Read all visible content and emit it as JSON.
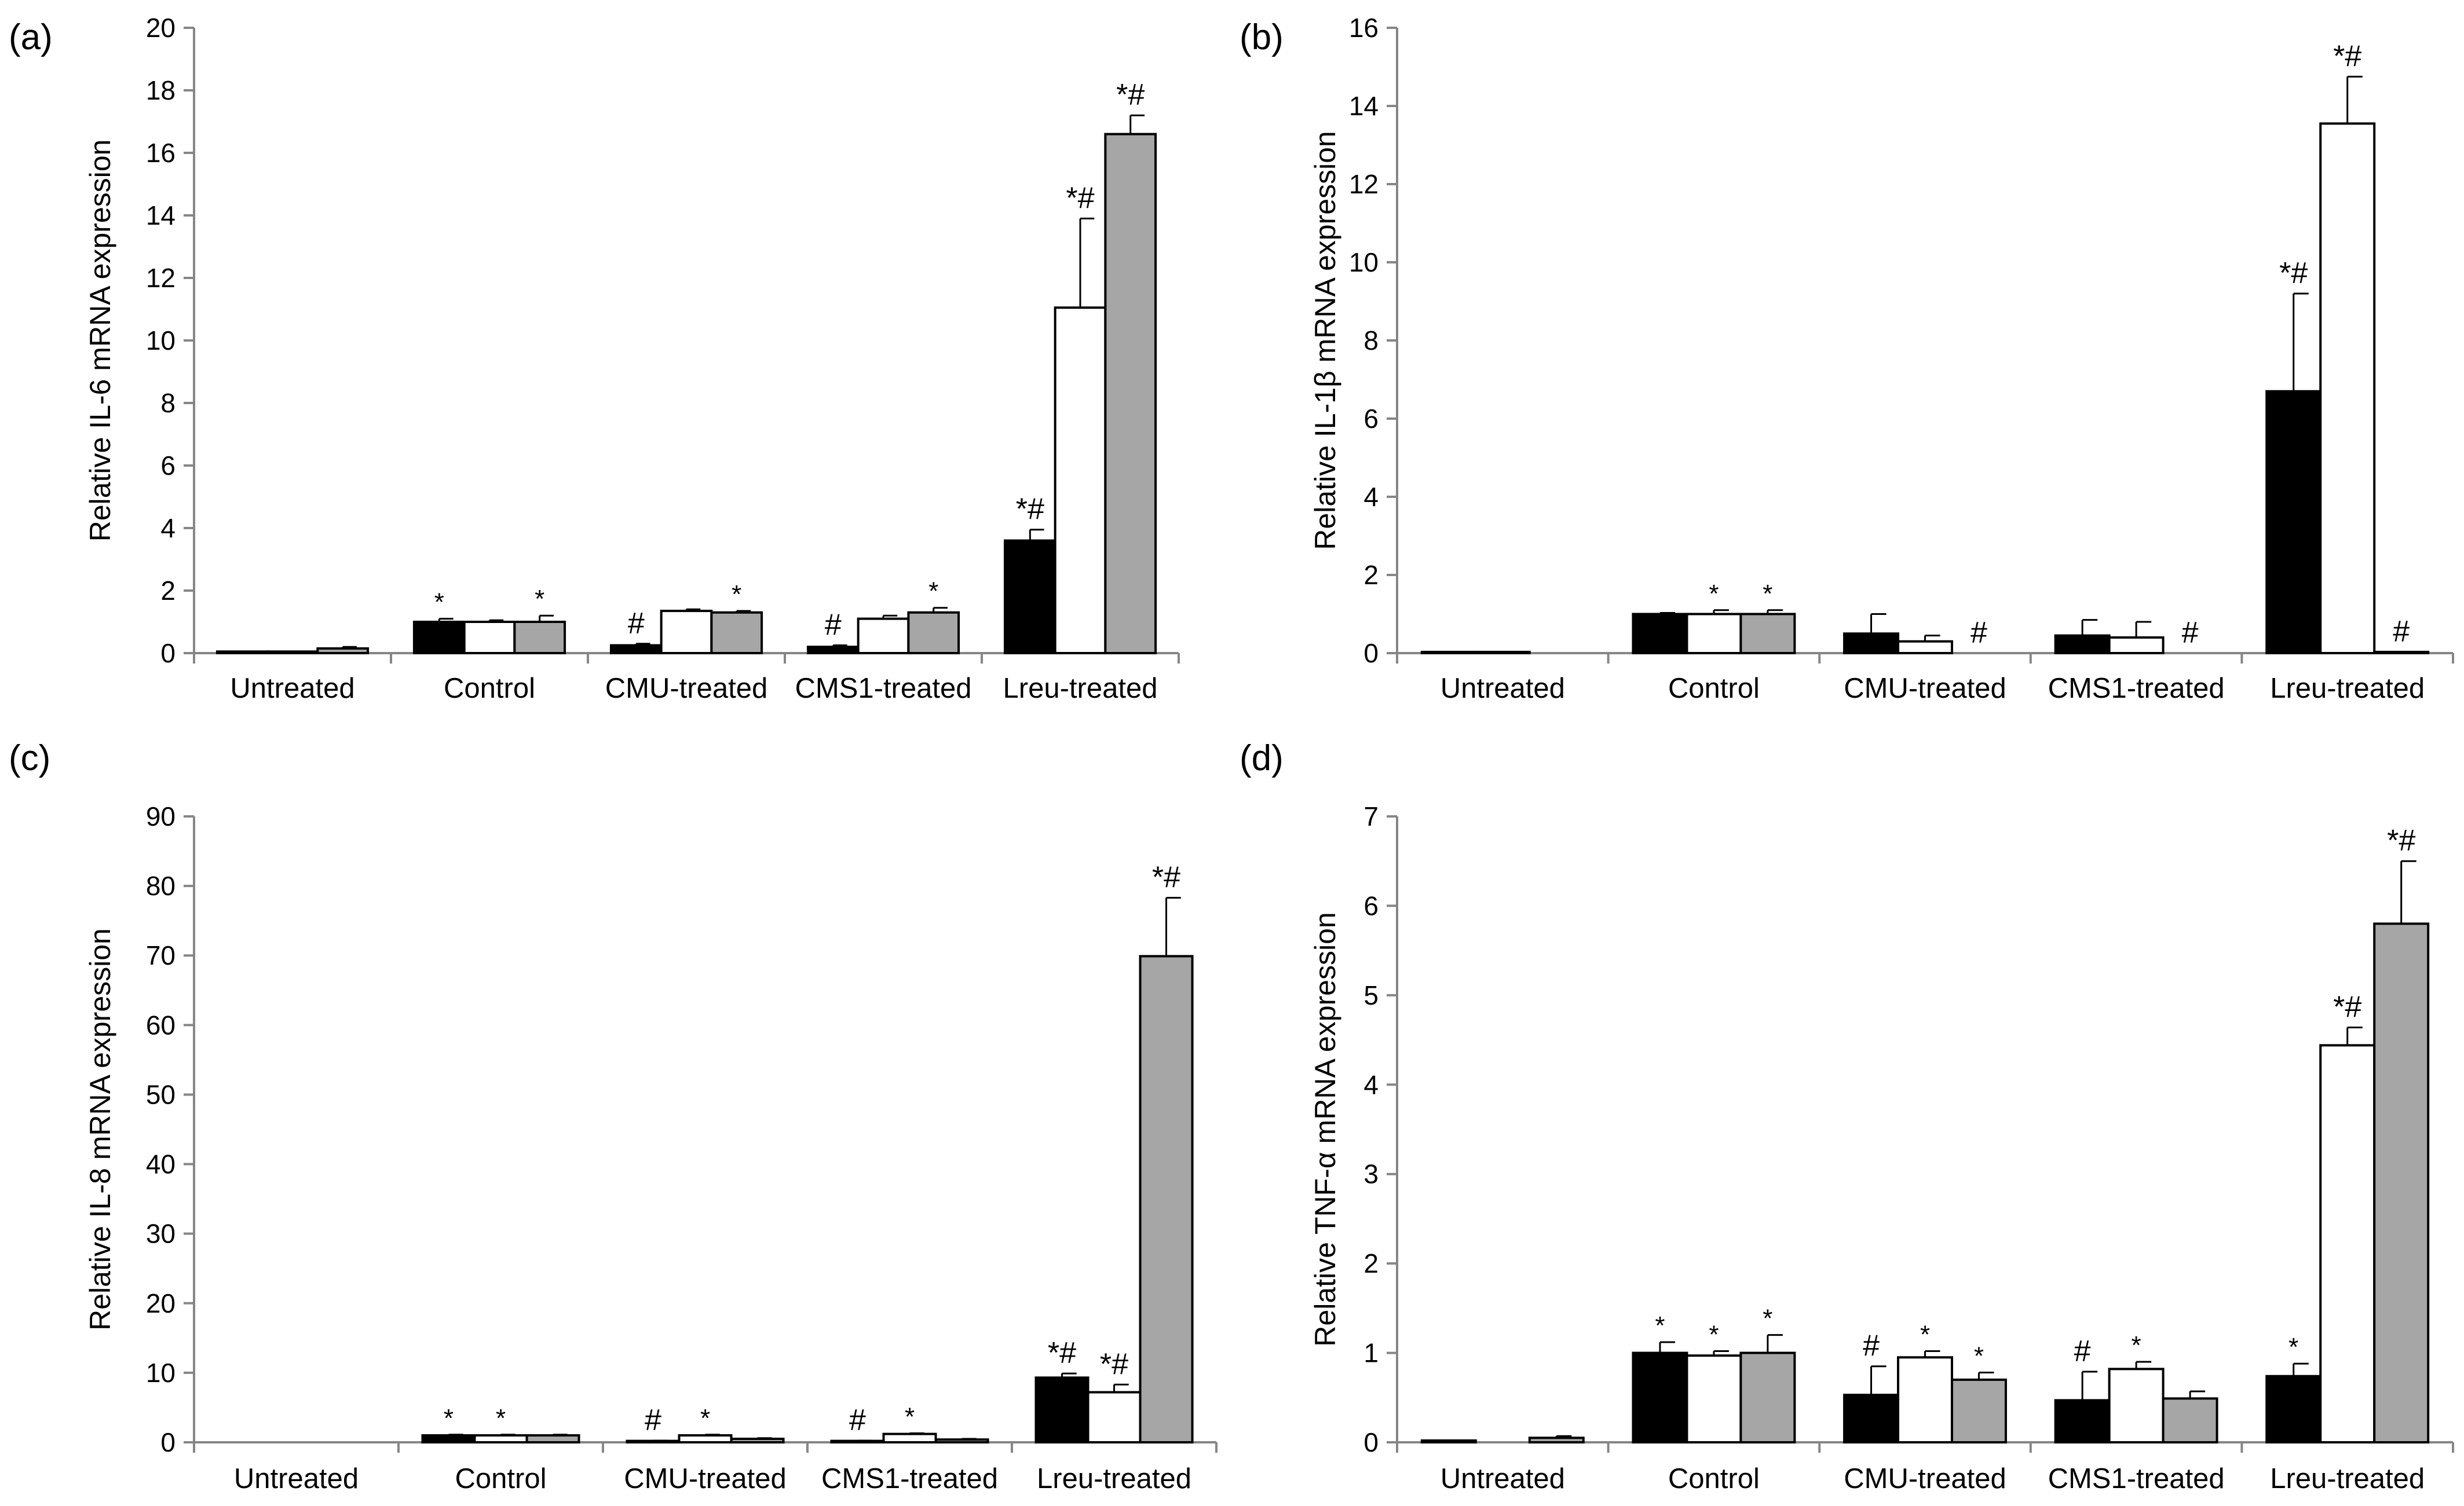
{
  "colors": {
    "black": "#000000",
    "white": "#ffffff",
    "gray": "#a6a6a6",
    "axis": "#868686"
  },
  "chart_data": [
    {
      "type": "bar",
      "panel": "(a)",
      "ylabel": "Relative IL-6 mRNA expression",
      "ylim": [
        0,
        20
      ],
      "yticks": [
        0,
        2,
        4,
        6,
        8,
        10,
        12,
        14,
        16,
        18,
        20
      ],
      "categories": [
        "Untreated",
        "Control",
        "CMU-treated",
        "CMS1-treated",
        "Lreu-treated"
      ],
      "series": [
        {
          "name": "series 1",
          "color": "#000000",
          "values": [
            0.05,
            1.0,
            0.25,
            0.2,
            3.6
          ],
          "errors": [
            0.0,
            0.1,
            0.05,
            0.05,
            0.35
          ],
          "sig": [
            "",
            "*",
            "#",
            "#",
            "*#"
          ]
        },
        {
          "name": "series 2",
          "color": "#ffffff",
          "values": [
            0.05,
            1.0,
            1.35,
            1.1,
            11.05
          ],
          "errors": [
            0.0,
            0.05,
            0.05,
            0.1,
            2.85
          ],
          "sig": [
            "",
            "",
            "",
            "",
            "*#"
          ]
        },
        {
          "name": "series 3",
          "color": "#a6a6a6",
          "values": [
            0.15,
            1.0,
            1.3,
            1.3,
            16.6
          ],
          "errors": [
            0.05,
            0.2,
            0.05,
            0.15,
            0.6
          ],
          "sig": [
            "",
            "*",
            "*",
            "*",
            "*#"
          ]
        }
      ]
    },
    {
      "type": "bar",
      "panel": "(b)",
      "ylabel": "Relative IL-1β mRNA expression",
      "ylim": [
        0,
        16
      ],
      "yticks": [
        0,
        2,
        4,
        6,
        8,
        10,
        12,
        14,
        16
      ],
      "categories": [
        "Untreated",
        "Control",
        "CMU-treated",
        "CMS1-treated",
        "Lreu-treated"
      ],
      "series": [
        {
          "name": "series 1",
          "color": "#000000",
          "values": [
            0.03,
            1.0,
            0.5,
            0.45,
            6.7
          ],
          "errors": [
            0.0,
            0.03,
            0.5,
            0.4,
            2.5
          ],
          "sig": [
            "",
            "",
            "",
            "",
            "*#"
          ]
        },
        {
          "name": "series 2",
          "color": "#ffffff",
          "values": [
            0.03,
            1.0,
            0.3,
            0.4,
            13.55
          ],
          "errors": [
            0.0,
            0.1,
            0.15,
            0.4,
            1.2
          ],
          "sig": [
            "",
            "*",
            "",
            "",
            "*#"
          ]
        },
        {
          "name": "series 3",
          "color": "#a6a6a6",
          "values": [
            0.0,
            1.0,
            0.0,
            0.0,
            0.03
          ],
          "errors": [
            0.0,
            0.1,
            0.0,
            0.0,
            0.0
          ],
          "sig": [
            "",
            "*",
            "#",
            "#",
            "#"
          ]
        }
      ]
    },
    {
      "type": "bar",
      "panel": "(c)",
      "ylabel": "Relative IL-8 mRNA expression",
      "ylim": [
        0,
        90
      ],
      "yticks": [
        0,
        10,
        20,
        30,
        40,
        50,
        60,
        70,
        80,
        90
      ],
      "categories": [
        "Untreated",
        "Control",
        "CMU-treated",
        "CMS1-treated",
        "Lreu-treated"
      ],
      "series": [
        {
          "name": "series 1",
          "color": "#000000",
          "values": [
            0.0,
            1.0,
            0.2,
            0.2,
            9.3
          ],
          "errors": [
            0.0,
            0.1,
            0.05,
            0.05,
            0.6
          ],
          "sig": [
            "",
            "*",
            "#",
            "#",
            "*#"
          ]
        },
        {
          "name": "series 2",
          "color": "#ffffff",
          "values": [
            0.0,
            1.0,
            1.0,
            1.2,
            7.2
          ],
          "errors": [
            0.0,
            0.1,
            0.1,
            0.1,
            1.1
          ],
          "sig": [
            "",
            "*",
            "*",
            "*",
            "*#"
          ]
        },
        {
          "name": "series 3",
          "color": "#a6a6a6",
          "values": [
            0.0,
            1.0,
            0.5,
            0.4,
            69.9
          ],
          "errors": [
            0.0,
            0.1,
            0.1,
            0.1,
            8.4
          ],
          "sig": [
            "",
            "",
            "",
            "",
            "*#"
          ]
        }
      ]
    },
    {
      "type": "bar",
      "panel": "(d)",
      "ylabel": "Relative TNF-α mRNA expression",
      "ylim": [
        0,
        7
      ],
      "yticks": [
        0,
        1,
        2,
        3,
        4,
        5,
        6,
        7
      ],
      "categories": [
        "Untreated",
        "Control",
        "CMU-treated",
        "CMS1-treated",
        "Lreu-treated"
      ],
      "series": [
        {
          "name": "series 1",
          "color": "#000000",
          "values": [
            0.02,
            1.0,
            0.53,
            0.47,
            0.74
          ],
          "errors": [
            0.0,
            0.12,
            0.32,
            0.32,
            0.14
          ],
          "sig": [
            "",
            "*",
            "#",
            "#",
            "*"
          ]
        },
        {
          "name": "series 2",
          "color": "#ffffff",
          "values": [
            0.0,
            0.97,
            0.95,
            0.82,
            4.44
          ],
          "errors": [
            0.0,
            0.05,
            0.07,
            0.08,
            0.2
          ],
          "sig": [
            "",
            "*",
            "*",
            "*",
            "*#"
          ]
        },
        {
          "name": "series 3",
          "color": "#a6a6a6",
          "values": [
            0.05,
            1.0,
            0.7,
            0.49,
            5.8
          ],
          "errors": [
            0.02,
            0.2,
            0.08,
            0.08,
            0.7
          ],
          "sig": [
            "",
            "*",
            "*",
            "",
            "*#"
          ]
        }
      ]
    }
  ]
}
